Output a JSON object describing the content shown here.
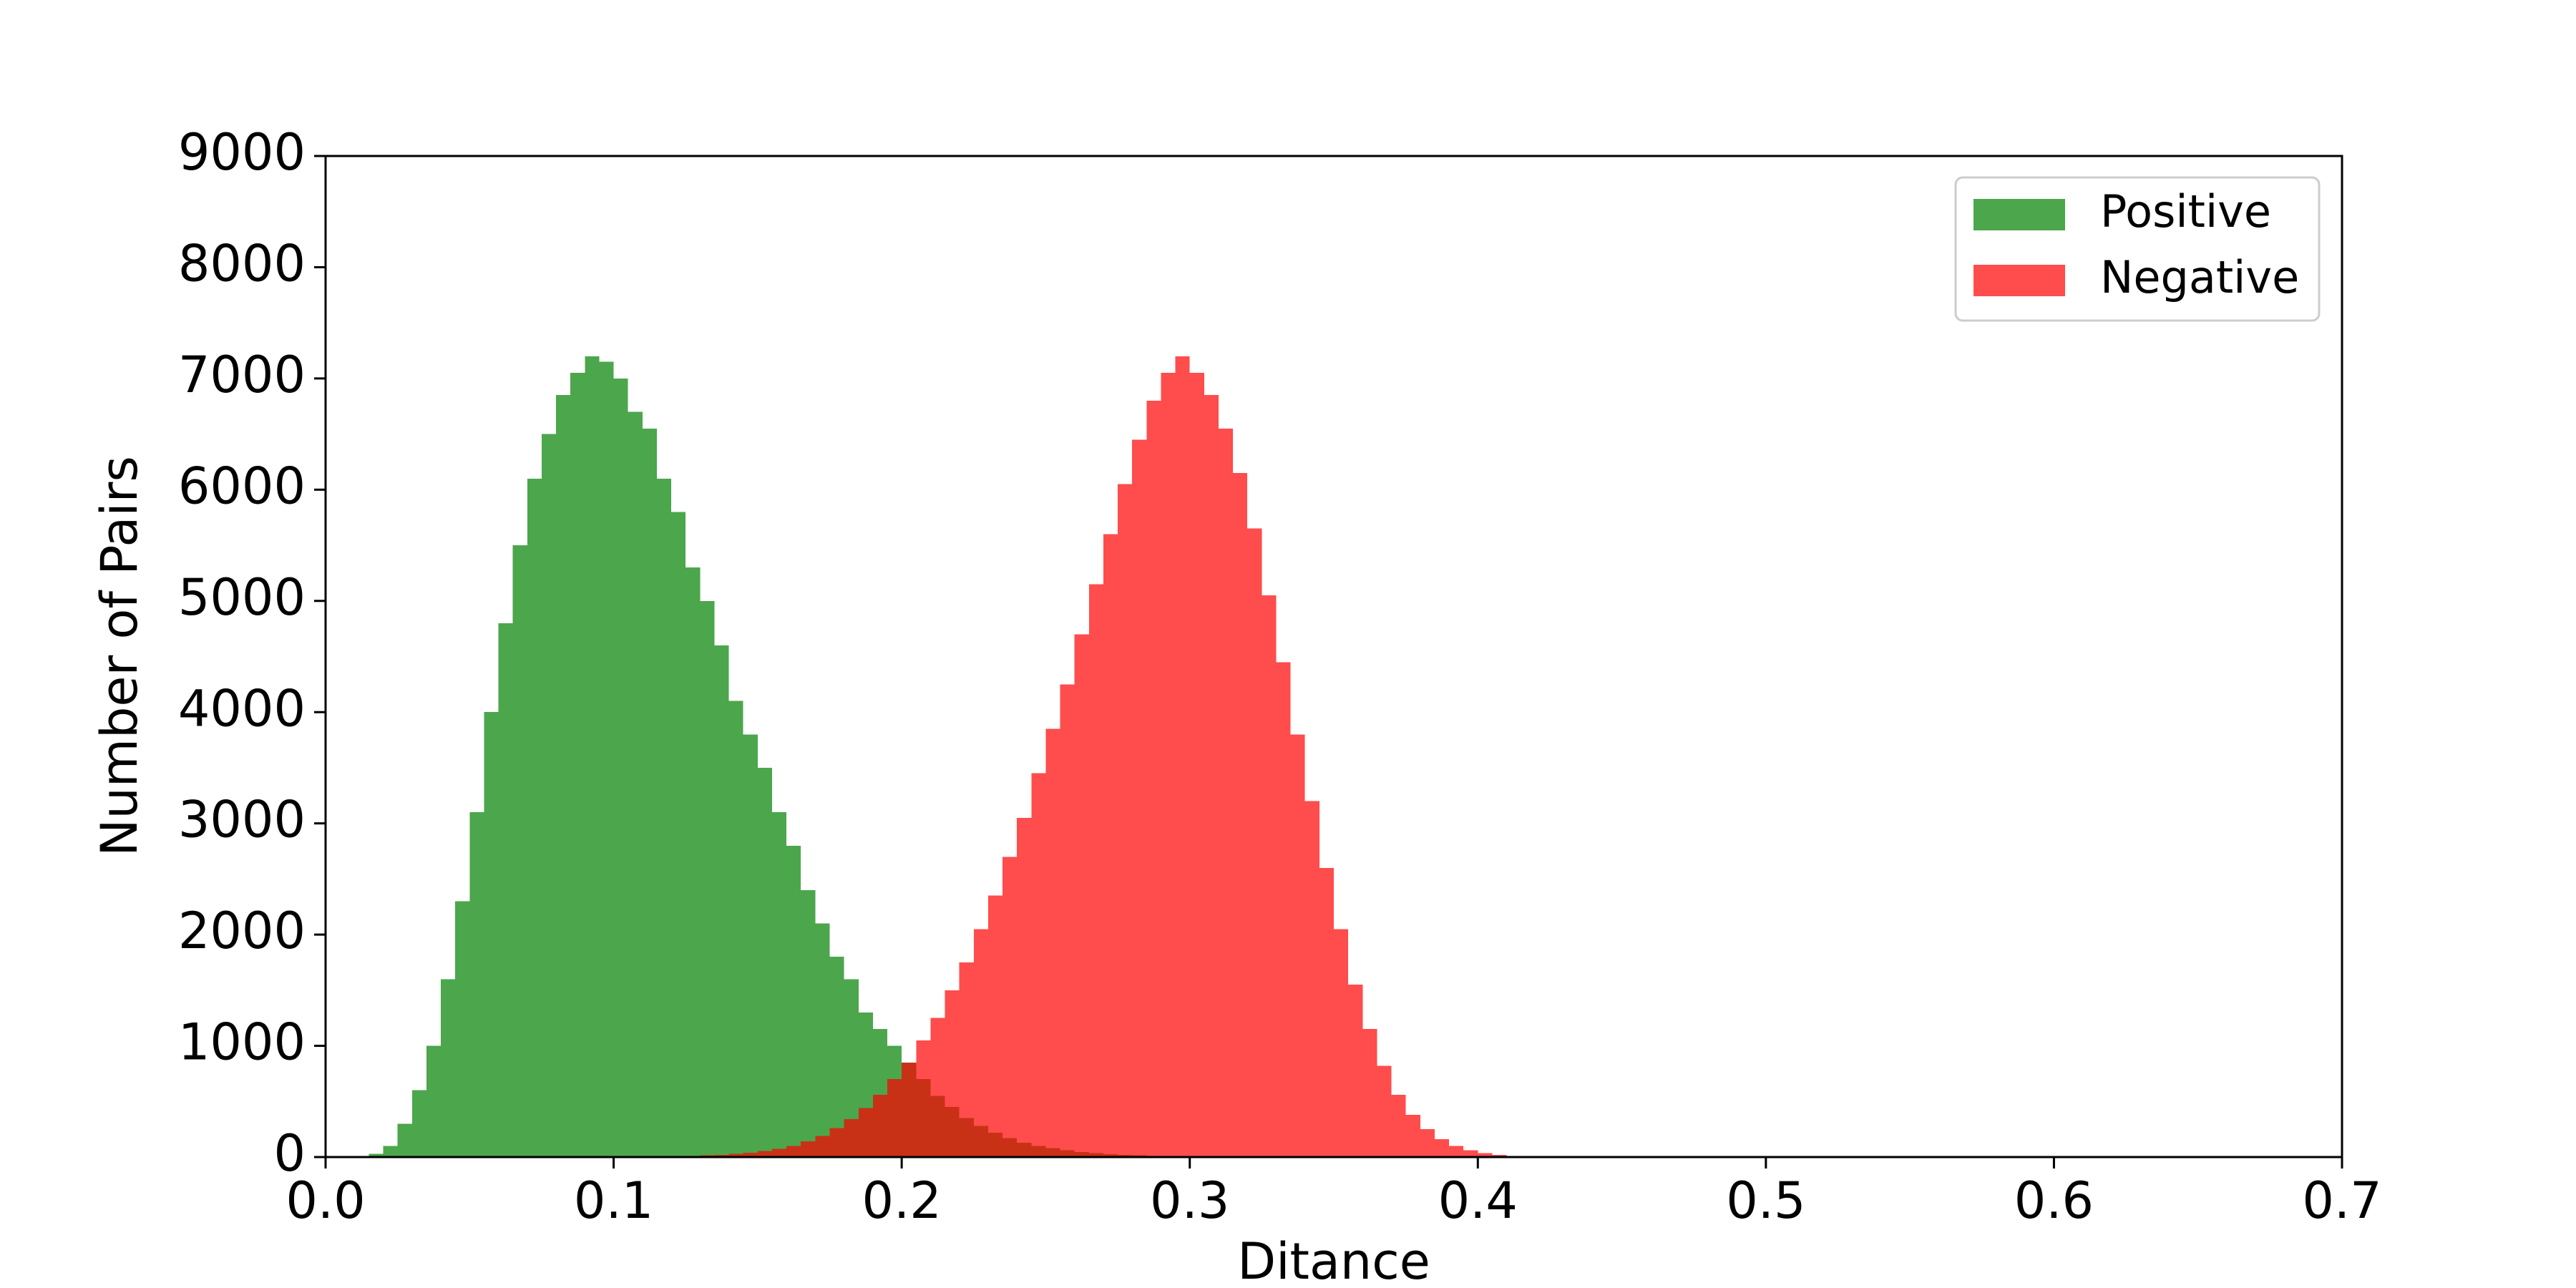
{
  "chart_data": {
    "type": "histogram",
    "xlabel": "Ditance",
    "ylabel": "Number of Pairs",
    "bins": [
      0,
      0.005,
      0.01,
      0.015,
      0.02,
      0.025,
      0.03,
      0.035,
      0.04,
      0.045,
      0.05,
      0.055,
      0.06,
      0.065,
      0.07,
      0.075,
      0.08,
      0.085,
      0.09,
      0.095,
      0.1,
      0.105,
      0.11,
      0.115,
      0.12,
      0.125,
      0.13,
      0.135,
      0.14,
      0.145,
      0.15,
      0.155,
      0.16,
      0.165,
      0.17,
      0.175,
      0.18,
      0.185,
      0.19,
      0.195,
      0.2,
      0.205,
      0.21,
      0.215,
      0.22,
      0.225,
      0.23,
      0.235,
      0.24,
      0.245,
      0.25,
      0.255,
      0.26,
      0.265,
      0.27,
      0.275,
      0.28,
      0.285,
      0.29,
      0.295,
      0.3,
      0.305,
      0.31,
      0.315,
      0.32,
      0.325,
      0.33,
      0.335,
      0.34,
      0.345,
      0.35,
      0.355,
      0.36,
      0.365,
      0.37,
      0.375,
      0.38,
      0.385,
      0.39,
      0.395,
      0.4,
      0.405,
      0.41,
      0.415,
      0.42,
      0.425,
      0.43,
      0.435,
      0.44,
      0.445,
      0.45
    ],
    "series": [
      {
        "name": "Positive",
        "color": "#008000",
        "values": [
          0,
          0,
          0,
          30,
          100,
          300,
          600,
          1000,
          1600,
          2300,
          3100,
          4000,
          4800,
          5500,
          6100,
          6500,
          6850,
          7050,
          7200,
          7150,
          7000,
          6700,
          6550,
          6100,
          5800,
          5300,
          5000,
          4600,
          4100,
          3800,
          3500,
          3100,
          2800,
          2400,
          2100,
          1800,
          1600,
          1300,
          1150,
          1000,
          850,
          700,
          550,
          450,
          350,
          280,
          220,
          170,
          130,
          100,
          80,
          60,
          45,
          35,
          25,
          20,
          15,
          10,
          5,
          0,
          0,
          0,
          0,
          0,
          0,
          0,
          0,
          0,
          0,
          0,
          0,
          0,
          0,
          0,
          0,
          0,
          0,
          0,
          0,
          0,
          0,
          0,
          0,
          0,
          0,
          0,
          0,
          0,
          0,
          0
        ]
      },
      {
        "name": "Negative",
        "color": "#ff0000",
        "values": [
          0,
          0,
          0,
          0,
          0,
          0,
          0,
          0,
          0,
          0,
          0,
          0,
          0,
          0,
          0,
          0,
          0,
          0,
          0,
          0,
          0,
          0,
          0,
          0,
          5,
          10,
          15,
          20,
          30,
          40,
          55,
          75,
          100,
          140,
          190,
          260,
          340,
          440,
          560,
          700,
          850,
          1050,
          1250,
          1500,
          1750,
          2050,
          2350,
          2700,
          3050,
          3450,
          3850,
          4250,
          4700,
          5150,
          5600,
          6050,
          6450,
          6800,
          7050,
          7200,
          7050,
          6850,
          6550,
          6150,
          5650,
          5050,
          4450,
          3800,
          3200,
          2600,
          2050,
          1550,
          1150,
          820,
          560,
          380,
          250,
          160,
          100,
          60,
          35,
          20,
          10,
          5,
          0,
          0,
          0,
          0,
          0,
          0
        ]
      }
    ],
    "alpha": 0.7,
    "xlim": [
      0,
      0.7
    ],
    "xticks": [
      {
        "value": 0,
        "label": "0.0"
      },
      0.1,
      0.2,
      0.3,
      0.4,
      0.5,
      0.6,
      0.7
    ],
    "ylim": [
      0,
      9000
    ],
    "yticks": [
      0,
      1000,
      2000,
      3000,
      4000,
      5000,
      6000,
      7000,
      8000,
      9000
    ],
    "grid": false,
    "legend": "upper right"
  }
}
